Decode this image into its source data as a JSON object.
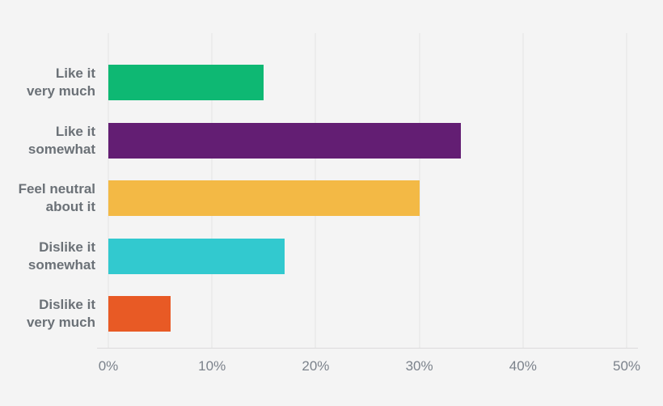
{
  "colors": {
    "background": "#f4f4f4",
    "gridline": "#e4e3e4",
    "axis_line": "#dcdbdc",
    "category_label": "#6b7177",
    "tick_label": "#7b828b"
  },
  "chart_data": {
    "type": "bar",
    "orientation": "horizontal",
    "title": "",
    "xlabel": "",
    "ylabel": "",
    "categories": [
      "Like it very much",
      "Like it somewhat",
      "Feel neutral about it",
      "Dislike it somewhat",
      "Dislike it very much"
    ],
    "category_lines": [
      [
        "Like it",
        "very much"
      ],
      [
        "Like it",
        "somewhat"
      ],
      [
        "Feel neutral",
        "about it"
      ],
      [
        "Dislike it",
        "somewhat"
      ],
      [
        "Dislike it",
        "very much"
      ]
    ],
    "values": [
      15,
      34,
      30,
      17,
      6
    ],
    "unit": "%",
    "bar_colors": [
      "#0eb873",
      "#631e73",
      "#f3b945",
      "#32c9cf",
      "#e85a25"
    ],
    "xlim": [
      0,
      50
    ],
    "x_ticks": [
      "0%",
      "10%",
      "20%",
      "30%",
      "40%",
      "50%"
    ],
    "x_tick_values": [
      0,
      10,
      20,
      30,
      40,
      50
    ],
    "grid": true,
    "legend": false
  }
}
